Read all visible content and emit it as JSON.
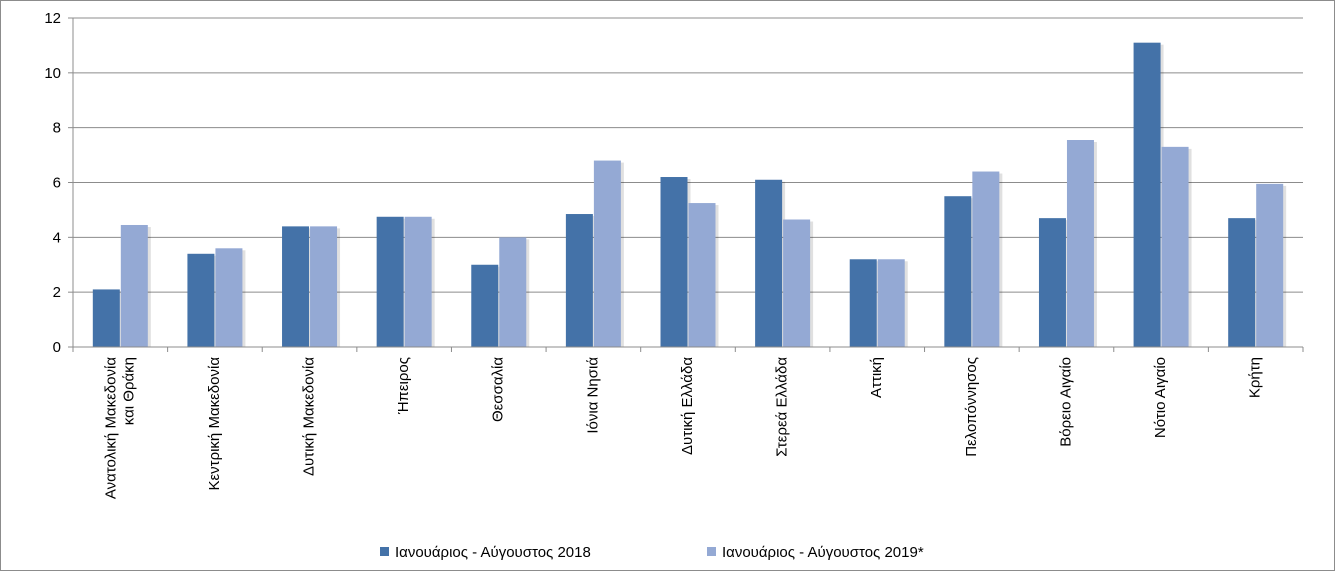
{
  "chart_data": {
    "type": "bar",
    "title": "",
    "xlabel": "",
    "ylabel": "",
    "ylim": [
      0,
      12
    ],
    "yticks": [
      0,
      2,
      4,
      6,
      8,
      10,
      12
    ],
    "grid": true,
    "legend_position": "bottom",
    "categories": [
      [
        "Ανατολική Μακεδονία",
        "και Θράκη"
      ],
      [
        "Κεντρική Μακεδονία"
      ],
      [
        "Δυτική Μακεδονία"
      ],
      [
        "Ήπειρος"
      ],
      [
        "Θεσσαλία"
      ],
      [
        "Ιόνια Νησιά"
      ],
      [
        "Δυτική Ελλάδα"
      ],
      [
        "Στερεά Ελλάδα"
      ],
      [
        "Αττική"
      ],
      [
        "Πελοπόννησος"
      ],
      [
        "Βόρειο Αιγαίο"
      ],
      [
        "Νότιο Αιγαίο"
      ],
      [
        "Κρήτη"
      ]
    ],
    "series": [
      {
        "name": "Ιανουάριος - Αύγουστος 2018",
        "color": "#4472a8",
        "values": [
          2.1,
          3.4,
          4.4,
          4.75,
          3.0,
          4.85,
          6.2,
          6.1,
          3.2,
          5.5,
          4.7,
          11.1,
          4.7
        ]
      },
      {
        "name": "Ιανουάριος - Αύγουστος 2019*",
        "color": "#94a9d4",
        "values": [
          4.45,
          3.6,
          4.4,
          4.75,
          4.0,
          6.8,
          5.25,
          4.65,
          3.2,
          6.4,
          7.55,
          7.3,
          5.95
        ]
      }
    ]
  }
}
